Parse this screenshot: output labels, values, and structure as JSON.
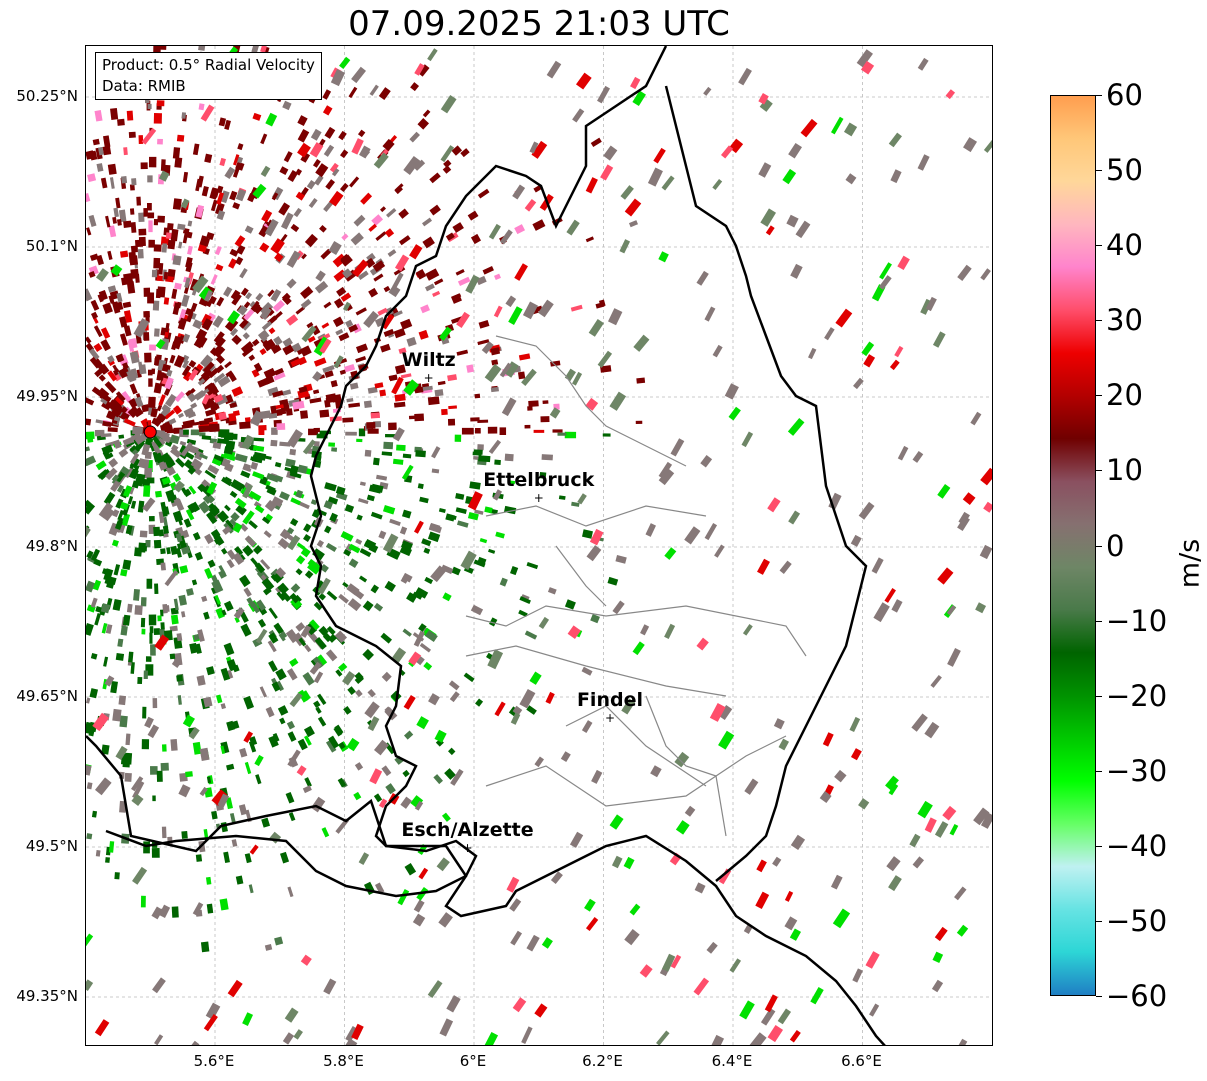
{
  "title": "07.09.2025 21:03 UTC",
  "info": {
    "product": "Product: 0.5° Radial Velocity",
    "data_source": "Data: RMIB"
  },
  "axes": {
    "lat_labels": [
      "50.25°N",
      "50.1°N",
      "49.95°N",
      "49.8°N",
      "49.65°N",
      "49.5°N",
      "49.35°N"
    ],
    "lon_labels": [
      "5.6°E",
      "5.8°E",
      "6°E",
      "6.2°E",
      "6.4°E",
      "6.6°E"
    ]
  },
  "cities": [
    {
      "name": "Wiltz",
      "lon": 5.93,
      "lat": 49.97
    },
    {
      "name": "Ettelbruck",
      "lon": 6.1,
      "lat": 49.85
    },
    {
      "name": "Findel",
      "lon": 6.21,
      "lat": 49.63
    },
    {
      "name": "Esch/Alzette",
      "lon": 5.99,
      "lat": 49.5
    }
  ],
  "radar_site": {
    "lon": 5.5,
    "lat": 49.915
  },
  "colorbar": {
    "unit": "m/s",
    "ticks": [
      "60",
      "50",
      "40",
      "30",
      "20",
      "10",
      "0",
      "−10",
      "−20",
      "−30",
      "−40",
      "−50",
      "−60"
    ],
    "stops": [
      "#ff9e4f",
      "#ffc779",
      "#ffd79a",
      "#ffb6bf",
      "#ff84cc",
      "#ff4e6b",
      "#ee0000",
      "#b40000",
      "#700000",
      "#8a5060",
      "#867070",
      "#6e8666",
      "#4a7a4a",
      "#006400",
      "#009200",
      "#00c800",
      "#00ff00",
      "#66ff66",
      "#bff1f1",
      "#66e3e3",
      "#2dd6d6",
      "#1f7fc4"
    ]
  },
  "colors": {
    "approaching_dark": "#006400",
    "approaching_light": "#00e000",
    "receding_dark": "#7a0000",
    "receding_light": "#e00000",
    "near_zero": "#867878",
    "border": "#000000",
    "canton_border": "#888888"
  }
}
